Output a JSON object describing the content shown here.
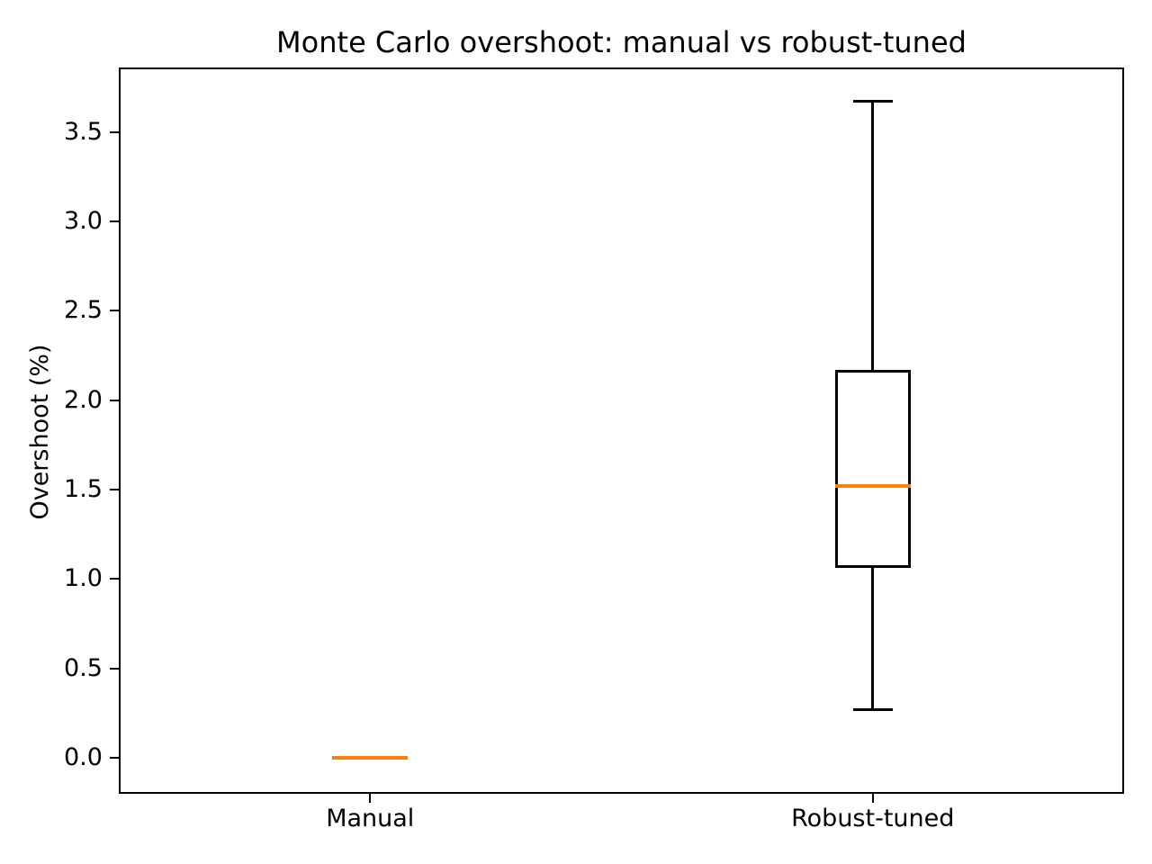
{
  "figure": {
    "background": "#ffffff"
  },
  "chart_data": {
    "type": "boxplot",
    "title": "Monte Carlo overshoot: manual vs robust-tuned",
    "xlabel": "",
    "ylabel": "Overshoot (%)",
    "categories": [
      "Manual",
      "Robust-tuned"
    ],
    "series": [
      {
        "name": "Manual",
        "whislo": 0.0,
        "q1": 0.0,
        "med": 0.0,
        "q3": 0.0,
        "whishi": 0.0,
        "fliers": []
      },
      {
        "name": "Robust-tuned",
        "whislo": 0.27,
        "q1": 1.07,
        "med": 1.52,
        "q3": 2.16,
        "whishi": 3.67,
        "fliers": []
      }
    ],
    "ylim": [
      -0.2,
      3.86
    ],
    "ytick_values": [
      0.0,
      0.5,
      1.0,
      1.5,
      2.0,
      2.5,
      3.0,
      3.5
    ],
    "ytick_labels": [
      "0.0",
      "0.5",
      "1.0",
      "1.5",
      "2.0",
      "2.5",
      "3.0",
      "3.5"
    ],
    "grid": false,
    "legend": null,
    "colors": {
      "median": "#ff7f0e",
      "box": "#000000",
      "whisker": "#000000",
      "background": "#ffffff"
    }
  }
}
